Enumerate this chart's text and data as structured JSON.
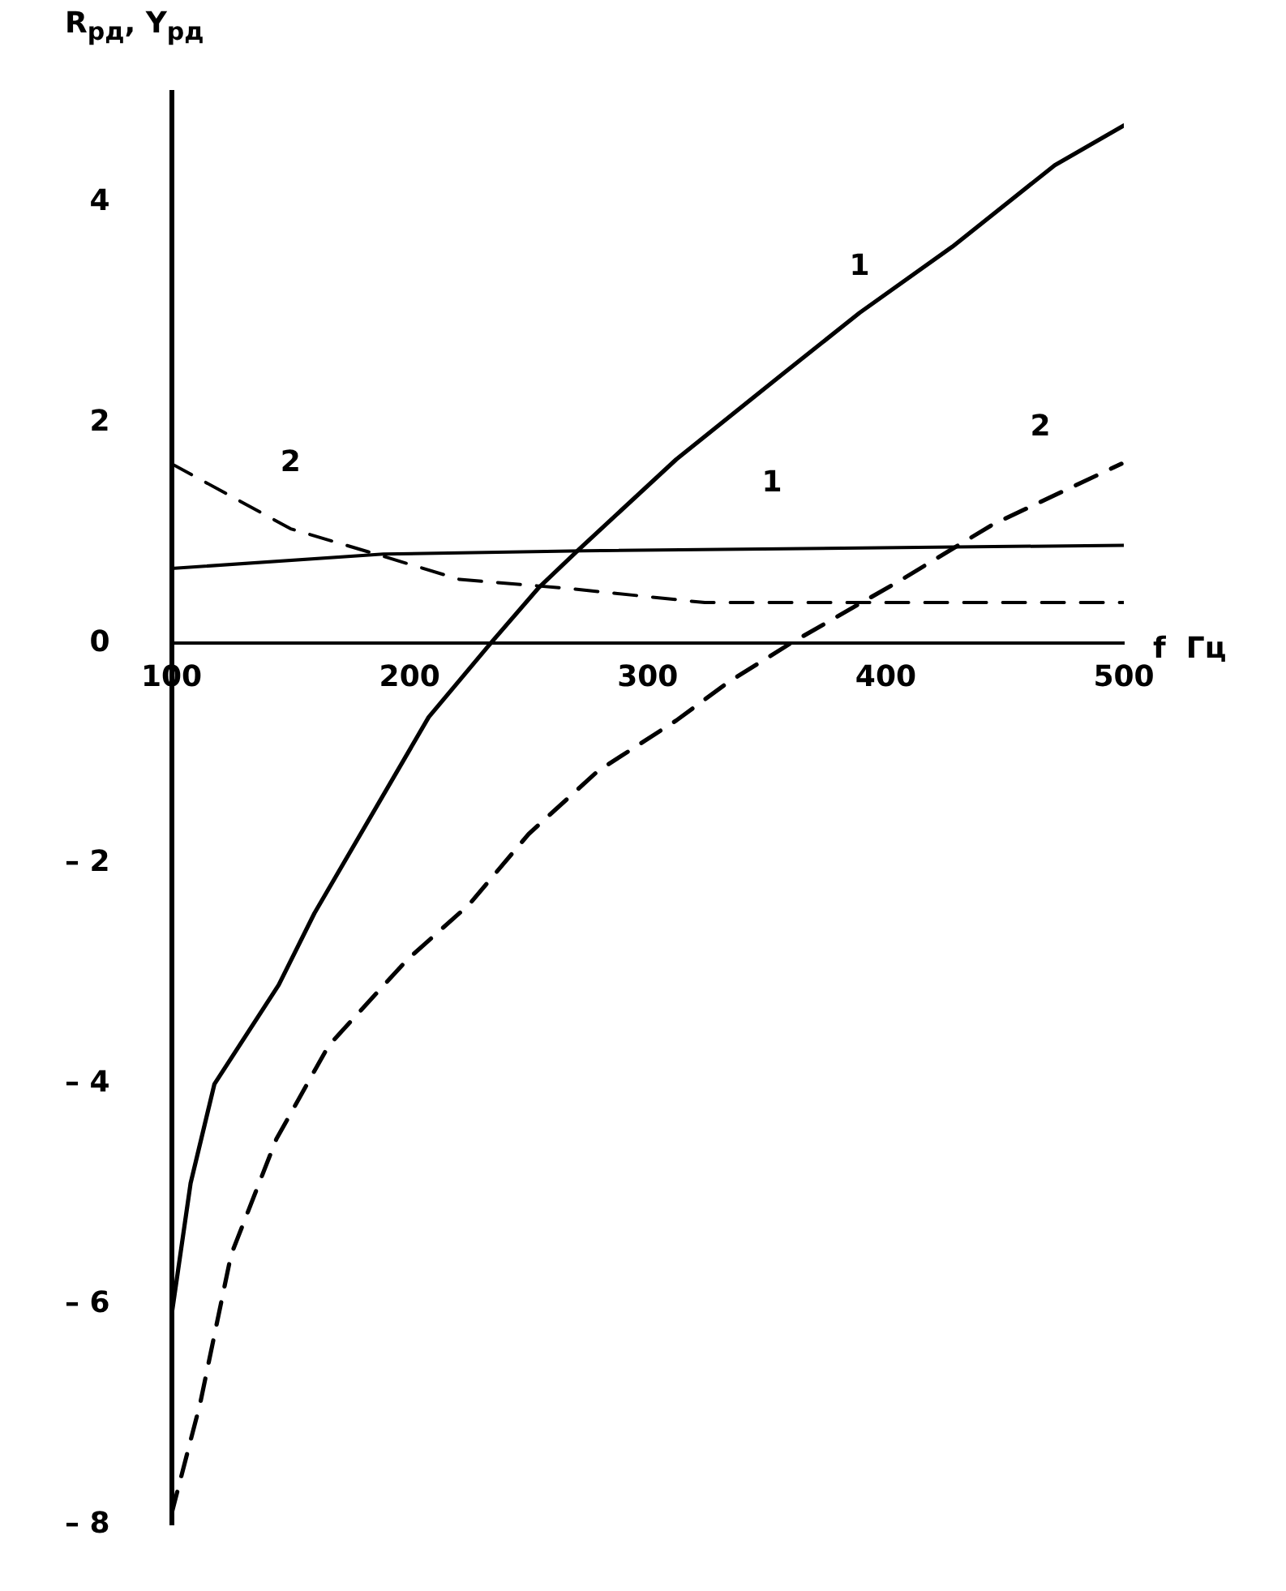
{
  "chart_data": {
    "type": "line",
    "ylabel": "R$_{рд}$, Y$_{рд}$",
    "xlabel": "f  Гц",
    "xlim": [
      100,
      500
    ],
    "ylim": [
      -8,
      5
    ],
    "xticks": [
      100,
      200,
      300,
      400,
      500
    ],
    "yticks": [
      {
        "value": -8,
        "label": "– 8"
      },
      {
        "value": -6,
        "label": "– 6"
      },
      {
        "value": -4,
        "label": "– 4"
      },
      {
        "value": -2,
        "label": "– 2"
      },
      0,
      2,
      4
    ],
    "grid": false,
    "legend": false,
    "marker": "none",
    "series": [
      {
        "name": "1",
        "color": "#000000",
        "line_style": "solid",
        "x": [
          100,
          108,
          118,
          145,
          160,
          208,
          234,
          254,
          271,
          312,
          357,
          389,
          428,
          471,
          500
        ],
        "values": [
          -6.1,
          -4.9,
          -4.0,
          -3.1,
          -2.45,
          -0.67,
          0,
          0.5,
          0.85,
          1.67,
          2.45,
          3.0,
          3.6,
          4.34,
          4.7
        ]
      },
      {
        "name": "2",
        "color": "#000000",
        "line_style": "dashed",
        "x": [
          100,
          112,
          125,
          144,
          166,
          199,
          225,
          250,
          279,
          312,
          334,
          360,
          406,
          445,
          499
        ],
        "values": [
          -7.9,
          -6.9,
          -5.55,
          -4.5,
          -3.65,
          -2.87,
          -2.37,
          -1.73,
          -1.16,
          -0.7,
          -0.35,
          0,
          0.57,
          1.08,
          1.63
        ]
      },
      {
        "name": "1",
        "color": "#000000",
        "line_style": "solid",
        "x": [
          100,
          189,
          273,
          500
        ],
        "values": [
          0.68,
          0.81,
          0.84,
          0.89
        ]
      },
      {
        "name": "2",
        "color": "#000000",
        "line_style": "dashed",
        "x": [
          100,
          150,
          189,
          221,
          266,
          324,
          400,
          500
        ],
        "values": [
          1.63,
          1.04,
          0.79,
          0.58,
          0.5,
          0.37,
          0.37,
          0.37
        ]
      }
    ]
  }
}
